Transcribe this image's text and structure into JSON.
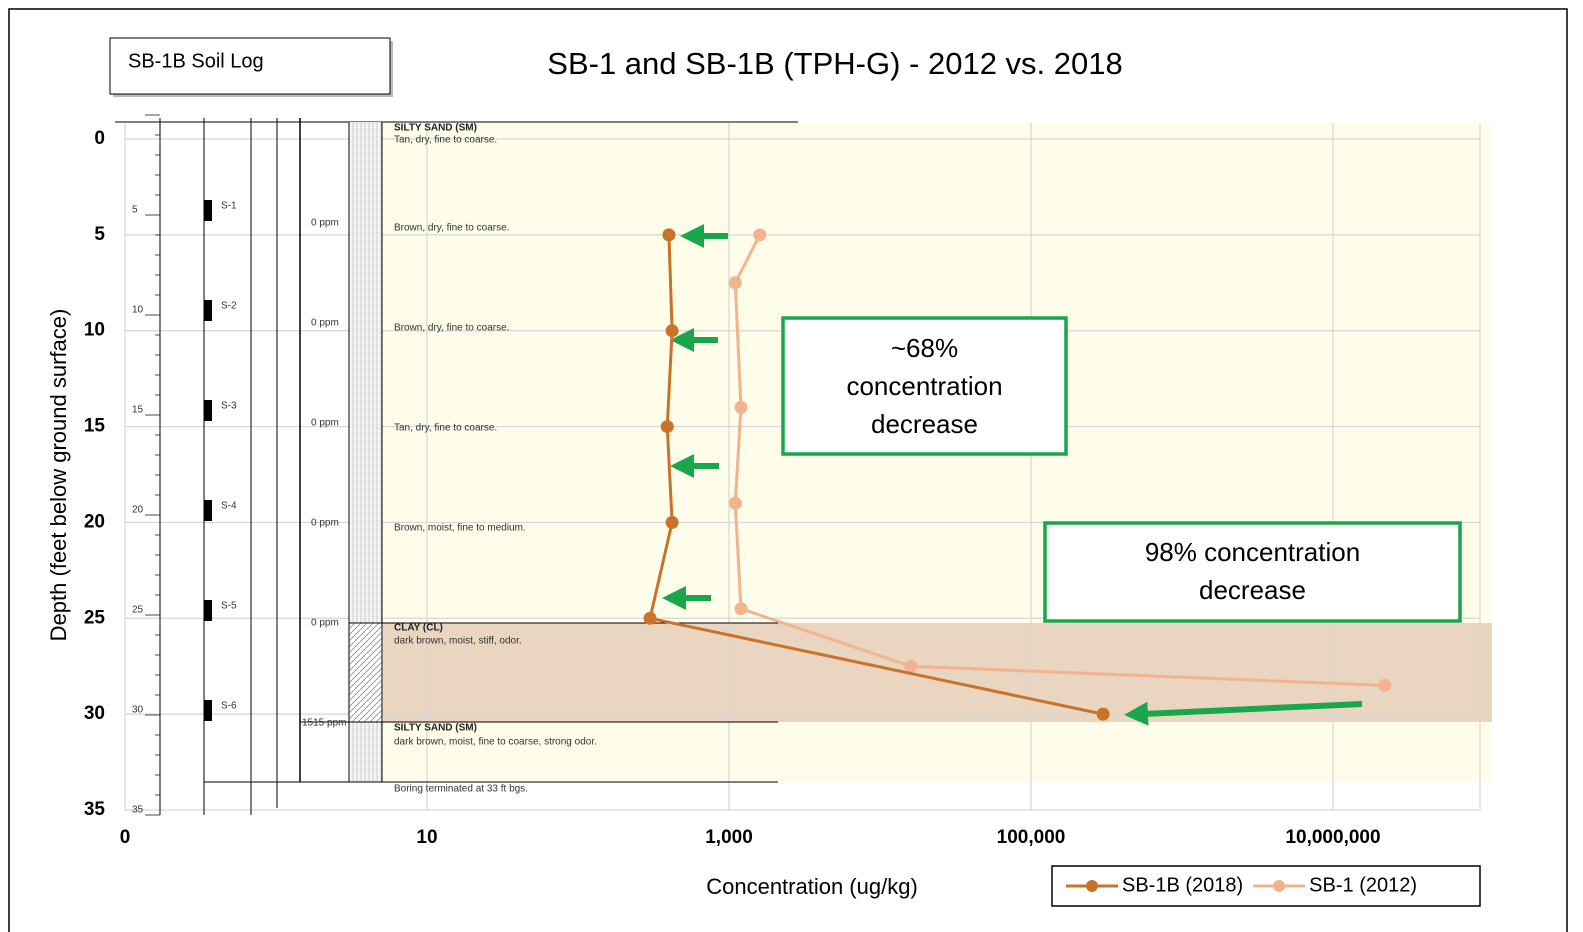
{
  "chart_data": {
    "type": "line",
    "title": "SB-1 and SB-1B (TPH-G) - 2012 vs. 2018",
    "x_label": "Concentration (ug/kg)",
    "y_label": "Depth (feet below ground surface)",
    "x_log": true,
    "y_reversed": true,
    "xlim": [
      0.1,
      100000000
    ],
    "xticks": [
      {
        "value": 0.1,
        "label": "0"
      },
      10,
      {
        "value": 1000,
        "label": "1,000"
      },
      {
        "value": 100000,
        "label": "100,000"
      },
      {
        "value": 10000000,
        "label": "10,000,000"
      }
    ],
    "ylim": [
      0,
      35
    ],
    "yticks": [
      0,
      5,
      10,
      15,
      20,
      25,
      30,
      35
    ],
    "grid": true,
    "legend": "bottom-right",
    "series": [
      {
        "name": "SB-1B (2018)",
        "color": "#c8722a",
        "x": [
          400,
          420,
          390,
          420,
          300,
          300000
        ],
        "values": [
          5,
          10,
          15,
          20,
          25,
          30
        ]
      },
      {
        "name": "SB-1 (2012)",
        "color": "#f2b48e",
        "x": [
          1600,
          1100,
          1200,
          1100,
          1200,
          16000,
          22000000
        ],
        "values": [
          5,
          7.5,
          14,
          19,
          24.5,
          27.5,
          28.5
        ]
      }
    ],
    "annotations": [
      {
        "lines": [
          "~68%",
          "concentration",
          "decrease"
        ]
      },
      {
        "lines": [
          "98% concentration",
          "decrease"
        ]
      }
    ]
  },
  "soil_log": {
    "title": "SB-1B Soil Log",
    "depth_labels": [
      5,
      10,
      15,
      20,
      25,
      30,
      35
    ],
    "samples": [
      {
        "label": "S-1",
        "ppm": "0 ppm"
      },
      {
        "label": "S-2",
        "ppm": "0 ppm"
      },
      {
        "label": "S-3",
        "ppm": "0 ppm"
      },
      {
        "label": "S-4",
        "ppm": "0 ppm"
      },
      {
        "label": "S-5",
        "ppm": "0 ppm"
      },
      {
        "label": "S-6",
        "ppm": "1515 ppm"
      }
    ],
    "descriptions": [
      "SILTY SAND (SM)",
      "Tan, dry, fine to coarse.",
      "Brown, dry, fine to coarse.",
      "Brown, dry, fine to coarse.",
      "Tan, dry, fine to coarse.",
      "Brown, moist, fine to medium.",
      "CLAY (CL)",
      "dark brown, moist, stiff, odor.",
      "SILTY SAND (SM)",
      "dark brown, moist, fine to coarse, strong odor.",
      "Boring terminated at 33 ft bgs."
    ]
  }
}
